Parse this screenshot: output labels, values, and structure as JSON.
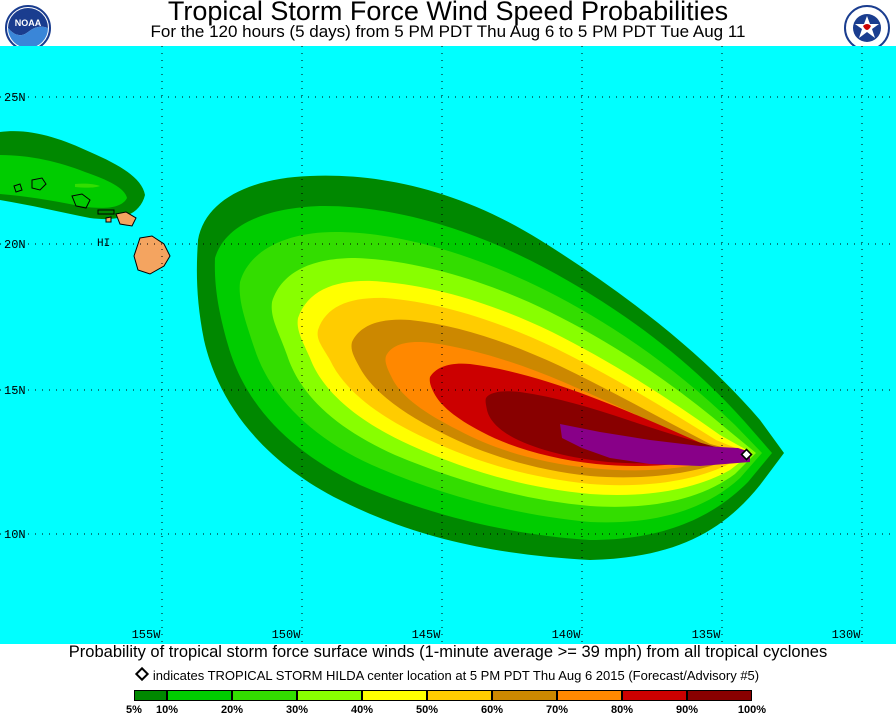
{
  "header": {
    "title": "Tropical Storm Force Wind Speed Probabilities",
    "subtitle": "For the 120 hours (5 days) from 5 PM PDT Thu Aug 6 to 5 PM PDT Tue Aug 11"
  },
  "logos": {
    "left": {
      "icon": "noaa-logo-icon",
      "text": "NOAA"
    },
    "right": {
      "icon": "nws-logo-icon",
      "text": "NATIONAL WEATHER SERVICE"
    }
  },
  "map": {
    "ocean_color": "#00ffff",
    "land_color": "#f4a460",
    "lon_labels": [
      "155W",
      "150W",
      "145W",
      "140W",
      "135W",
      "130W"
    ],
    "lat_labels": [
      "25N",
      "20N",
      "15N",
      "10N"
    ],
    "place_label": "HI",
    "storm_center": {
      "lon": -133.2,
      "lat": 12.8,
      "icon": "storm-center-diamond-icon"
    }
  },
  "footer": {
    "caption": "Probability of tropical storm force surface winds (1-minute average >= 39 mph) from all tropical cyclones",
    "marker_note": "indicates TROPICAL STORM HILDA center location at 5 PM PDT Thu Aug 6 2015 (Forecast/Advisory #5)"
  },
  "legend": {
    "colors": [
      "#008800",
      "#00cc00",
      "#33dd00",
      "#88ff00",
      "#ffff00",
      "#ffcc00",
      "#cc8800",
      "#ff8800",
      "#cc0000",
      "#880000",
      "#880088"
    ],
    "labels": [
      "5%",
      "10%",
      "20%",
      "30%",
      "40%",
      "50%",
      "60%",
      "70%",
      "80%",
      "90%",
      "100%"
    ]
  }
}
